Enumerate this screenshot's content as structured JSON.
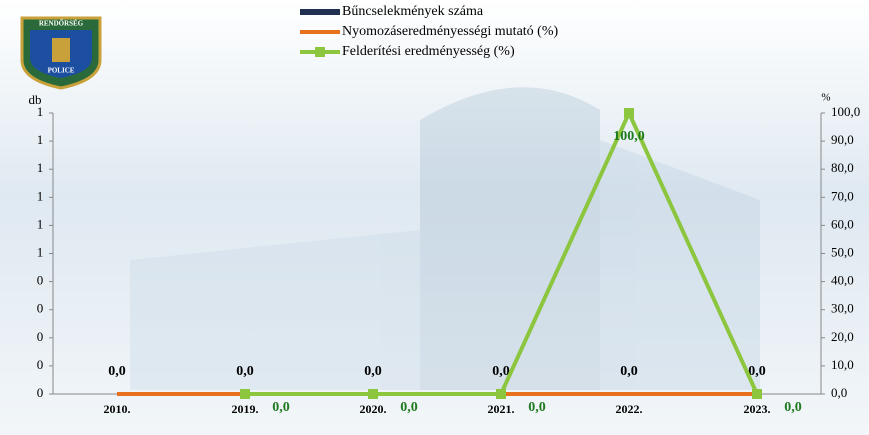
{
  "logo": {
    "top": "RENDŐRSÉG",
    "bottom": "POLICE"
  },
  "chart_data": {
    "type": "combo",
    "categories": [
      "2010.",
      "2019.",
      "2020.",
      "2021.",
      "2022.",
      "2023."
    ],
    "ylabel": "db",
    "y2label": "%",
    "ylim": [
      0,
      1
    ],
    "yticks": [
      0,
      {
        "value": 0.1,
        "label": "0"
      },
      {
        "value": 0.2,
        "label": "0"
      },
      {
        "value": 0.3,
        "label": "0"
      },
      {
        "value": 0.4,
        "label": "0"
      },
      {
        "value": 0.5,
        "label": "1"
      },
      {
        "value": 0.6,
        "label": "1"
      },
      {
        "value": 0.7,
        "label": "1"
      },
      {
        "value": 0.8,
        "label": "1"
      },
      {
        "value": 0.9,
        "label": "1"
      },
      1
    ],
    "y2lim": [
      0,
      100
    ],
    "y2ticks": [
      {
        "value": 0,
        "label": "0,0"
      },
      {
        "value": 10,
        "label": "10,0"
      },
      {
        "value": 20,
        "label": "20,0"
      },
      {
        "value": 30,
        "label": "30,0"
      },
      {
        "value": 40,
        "label": "40,0"
      },
      {
        "value": 50,
        "label": "50,0"
      },
      {
        "value": 60,
        "label": "60,0"
      },
      {
        "value": 70,
        "label": "70,0"
      },
      {
        "value": 80,
        "label": "80,0"
      },
      {
        "value": 90,
        "label": "90,0"
      },
      {
        "value": 100,
        "label": "100,0"
      }
    ],
    "series": [
      {
        "name": "Bűncselekmények száma",
        "type": "bar",
        "color": "#1f3050",
        "values": [
          0,
          0,
          0,
          0,
          0,
          0
        ],
        "value_labels": [
          "0,0",
          "0,0",
          "0,0",
          "0,0",
          "0,0",
          "0,0"
        ]
      },
      {
        "name": "Nyomozáseredményességi mutató (%)",
        "type": "line",
        "axis": "y2",
        "color": "#e8711e",
        "values": [
          0,
          0,
          0,
          0,
          0,
          0
        ]
      },
      {
        "name": "Felderítési eredményesség (%)",
        "type": "line",
        "axis": "y2",
        "color": "#8cc63f",
        "marker": "square",
        "values": [
          null,
          0,
          0,
          0,
          100,
          0
        ],
        "value_labels": [
          null,
          "0,0",
          "0,0",
          "0,0",
          "100,0",
          "0,0"
        ]
      }
    ]
  }
}
